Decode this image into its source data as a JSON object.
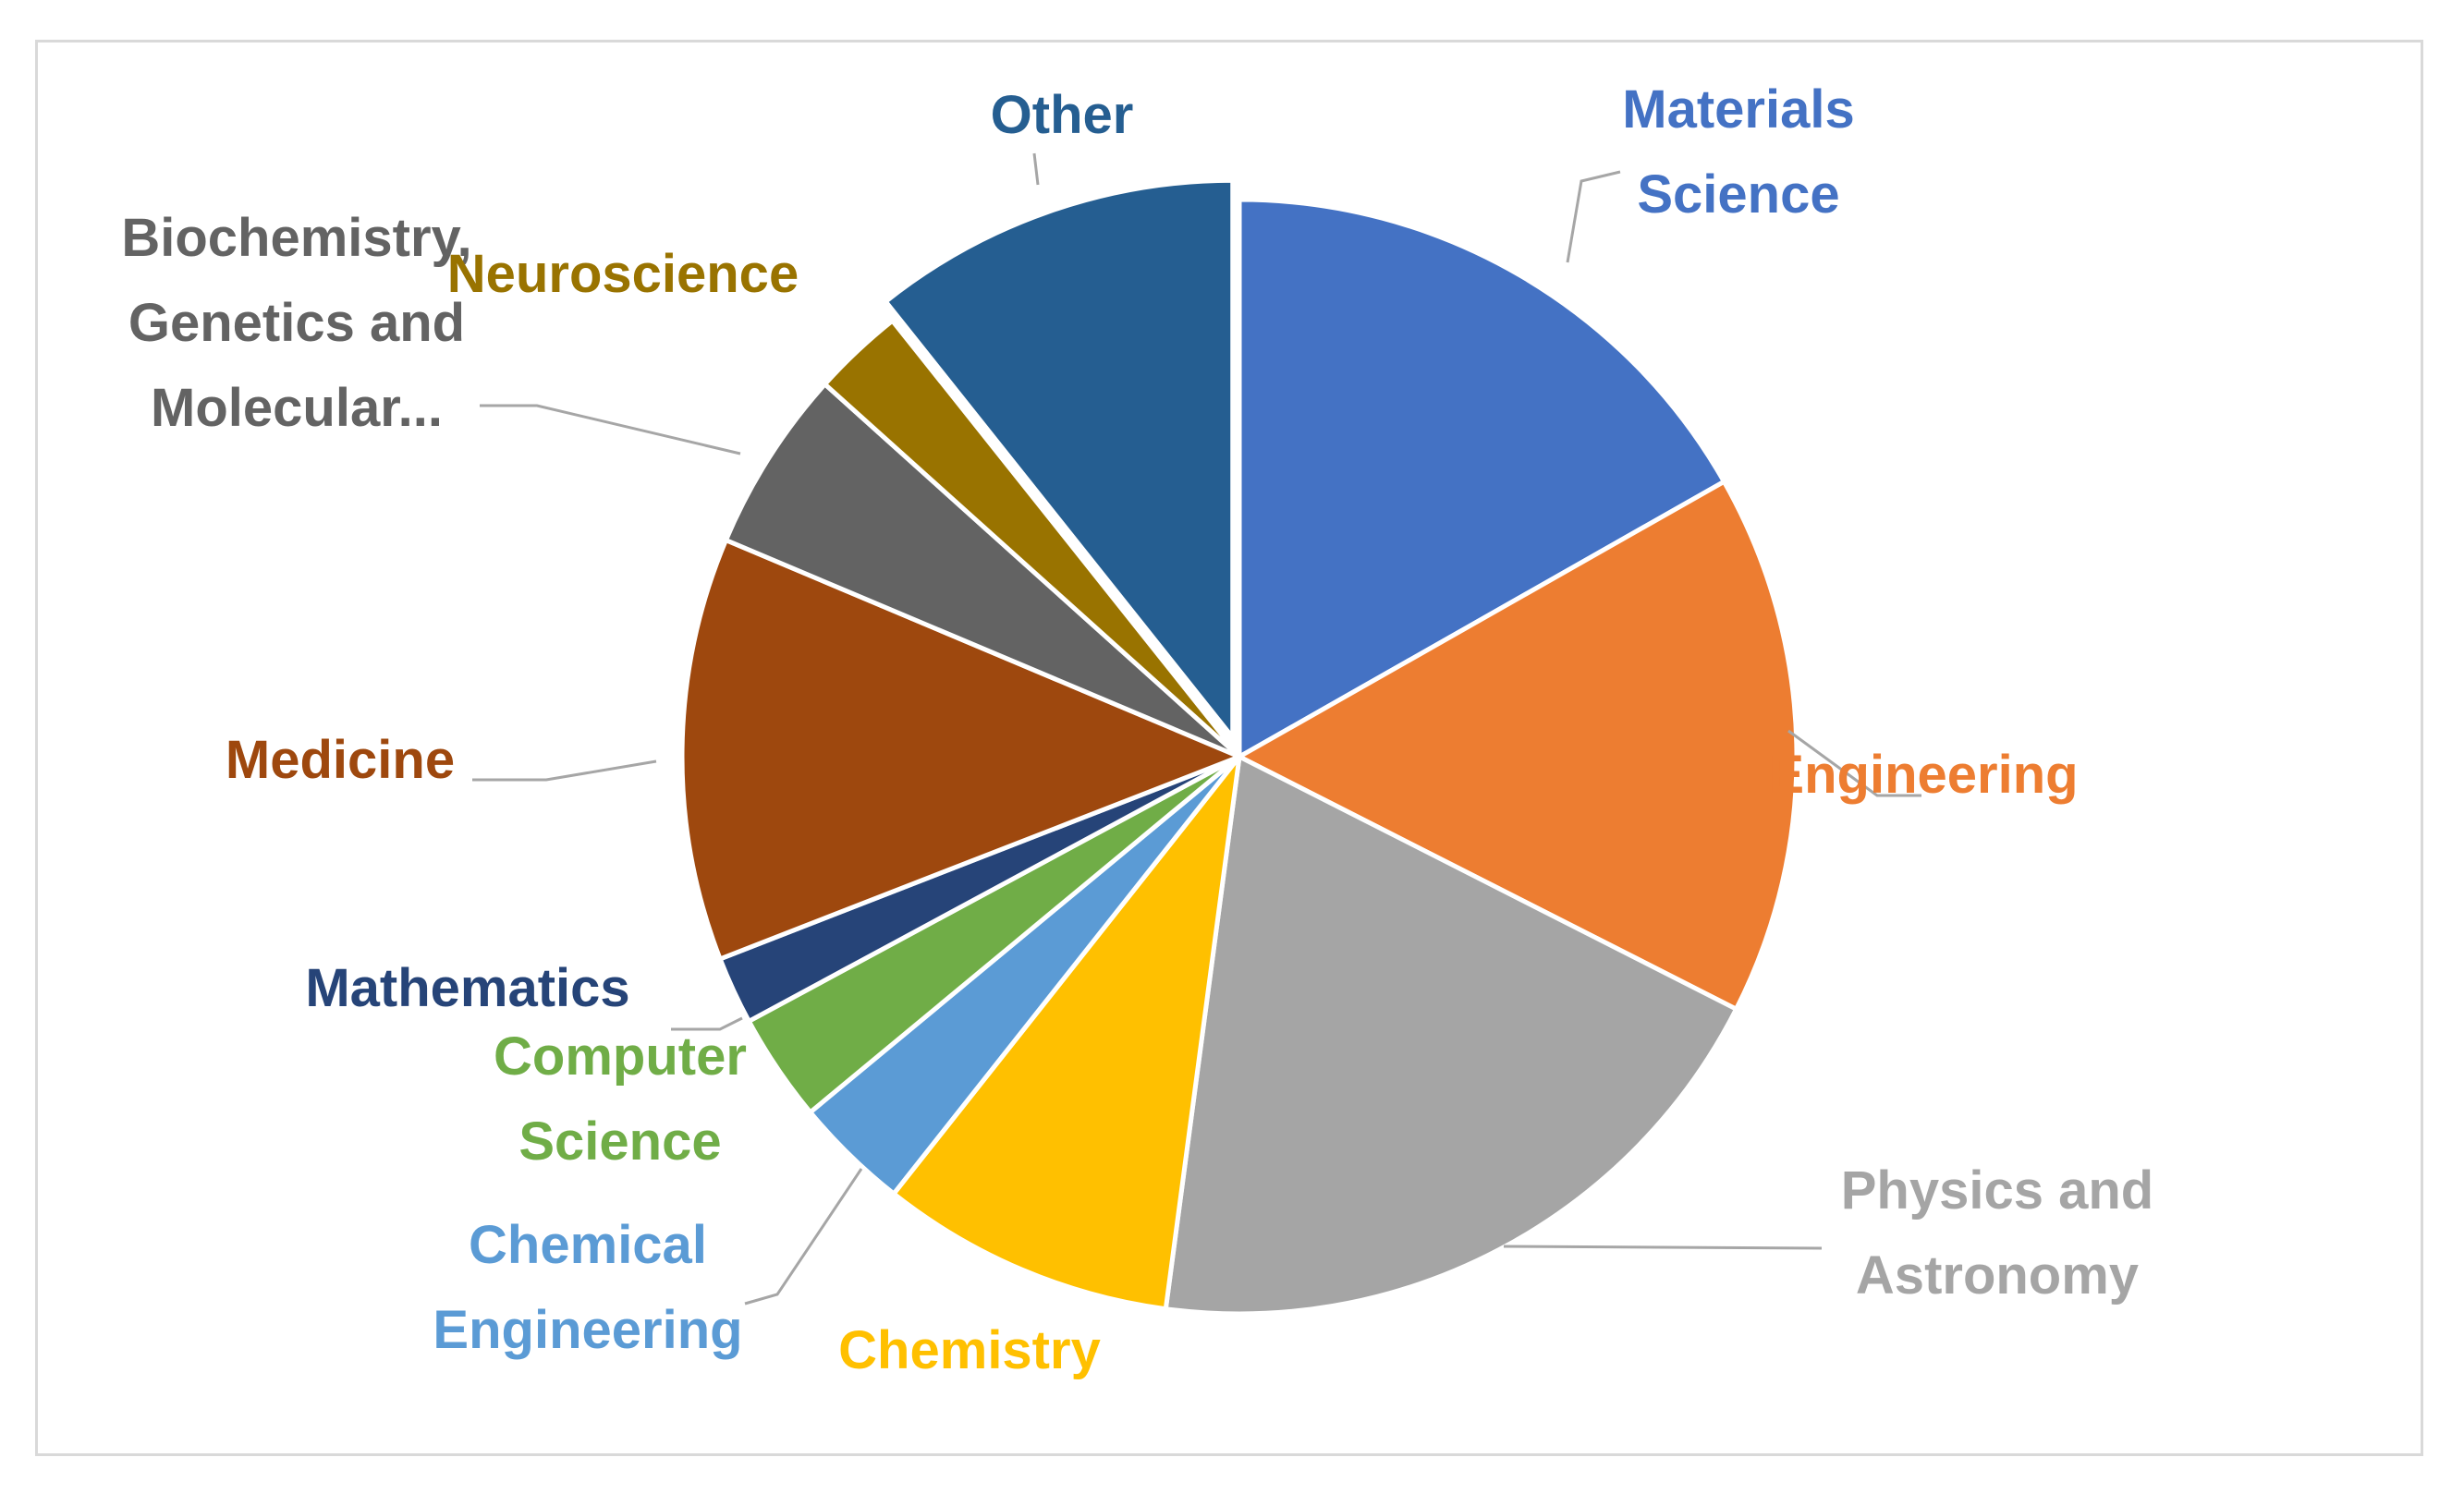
{
  "chart_data": {
    "type": "pie",
    "legend": "none",
    "slices": [
      {
        "label_lines": [
          "Materials",
          "Science"
        ],
        "value": 17.1,
        "color": "#4472C4",
        "label_color": "#4472C4",
        "exploded": false
      },
      {
        "label_lines": [
          "Engineering"
        ],
        "value": 16.0,
        "color": "#ED7D31",
        "label_color": "#ED7D31",
        "exploded": false
      },
      {
        "label_lines": [
          "Physics and",
          "Astronomy"
        ],
        "value": 20.0,
        "color": "#A5A5A5",
        "label_color": "#A5A5A5",
        "exploded": false
      },
      {
        "label_lines": [
          "Chemistry"
        ],
        "value": 8.7,
        "color": "#FFC000",
        "label_color": "#FFC000",
        "exploded": false
      },
      {
        "label_lines": [
          "Chemical",
          "Engineering"
        ],
        "value": 3.4,
        "color": "#5B9BD5",
        "label_color": "#5B9BD5",
        "exploded": false
      },
      {
        "label_lines": [
          "Computer",
          "Science"
        ],
        "value": 3.2,
        "color": "#70AD47",
        "label_color": "#70AD47",
        "exploded": false
      },
      {
        "label_lines": [
          "Mathematics"
        ],
        "value": 2.0,
        "color": "#264478",
        "label_color": "#264478",
        "exploded": false
      },
      {
        "label_lines": [
          "Medicine"
        ],
        "value": 12.5,
        "color": "#9E480E",
        "label_color": "#9E480E",
        "exploded": false
      },
      {
        "label_lines": [
          "Biochemistry,",
          "Genetics and",
          "Molecular..."
        ],
        "value": 5.4,
        "color": "#636363",
        "label_color": "#636363",
        "exploded": false
      },
      {
        "label_lines": [
          "Neuroscience"
        ],
        "value": 2.7,
        "color": "#997300",
        "label_color": "#997300",
        "exploded": false
      },
      {
        "label_lines": [
          "Other"
        ],
        "value": 10.9,
        "color": "#255E91",
        "label_color": "#255E91",
        "exploded": true
      }
    ]
  }
}
